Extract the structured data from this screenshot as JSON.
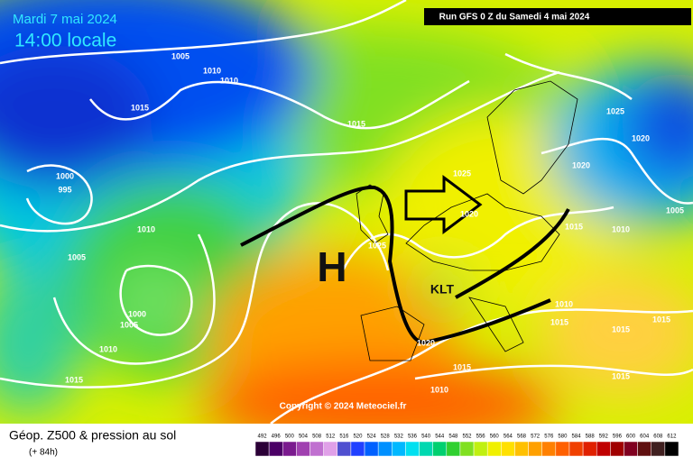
{
  "header": {
    "date": "Mardi 7 mai 2024",
    "time": "14:00 locale",
    "run": "Run GFS 0 Z du Samedi 4 mai 2024"
  },
  "map": {
    "high_label": "H",
    "low_label": "KLT",
    "copyright": "Copyright © 2024 Meteociel.fr",
    "isobar_labels": [
      "1005",
      "1010",
      "1010",
      "1015",
      "1015",
      "1000",
      "995",
      "1010",
      "1005",
      "1000",
      "1005",
      "1010",
      "1015",
      "1025",
      "1020",
      "1025",
      "1020",
      "1015",
      "1010",
      "1025",
      "1020",
      "1020",
      "1005",
      "1010",
      "1015",
      "1010",
      "1015",
      "1015",
      "1015",
      "1015"
    ]
  },
  "footer": {
    "title": "Géop. Z500 & pression au sol",
    "lead": "(+ 84h)",
    "scale": {
      "values": [
        492,
        496,
        500,
        504,
        508,
        512,
        516,
        520,
        524,
        528,
        532,
        536,
        540,
        544,
        548,
        552,
        556,
        560,
        564,
        568,
        572,
        576,
        580,
        584,
        588,
        592,
        596,
        600,
        604,
        608,
        612
      ],
      "colors": [
        "#2b0037",
        "#4b0066",
        "#7a1a8e",
        "#a040b0",
        "#c070d0",
        "#e0a0e8",
        "#5050d0",
        "#2040ff",
        "#0060ff",
        "#0090ff",
        "#00b8ff",
        "#00e0f0",
        "#00d8b0",
        "#00d070",
        "#30d030",
        "#80e020",
        "#c0f010",
        "#f0f000",
        "#ffe000",
        "#ffc000",
        "#ffa000",
        "#ff8000",
        "#ff6000",
        "#f04000",
        "#e02000",
        "#c00000",
        "#a00000",
        "#800020",
        "#601010",
        "#402020",
        "#000000"
      ]
    }
  }
}
